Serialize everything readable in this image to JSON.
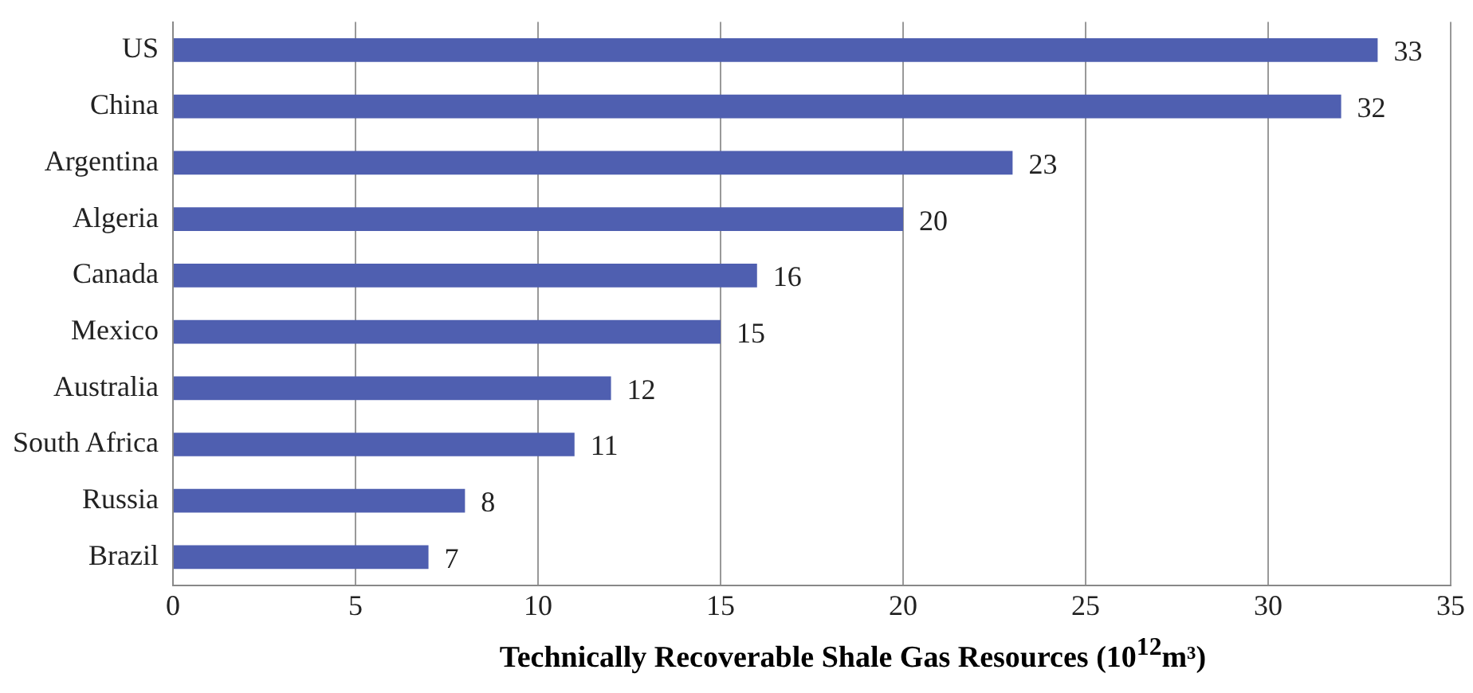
{
  "chart_data": {
    "type": "bar",
    "orientation": "horizontal",
    "xlabel": "Technically Recoverable Shale Gas Resources (10$^{12}$m³)",
    "categories": [
      "US",
      "China",
      "Argentina",
      "Algeria",
      "Canada",
      "Mexico",
      "Australia",
      "South Africa",
      "Russia",
      "Brazil"
    ],
    "values": [
      33,
      32,
      23,
      20,
      16,
      15,
      12,
      11,
      8,
      7
    ],
    "color": "#4f5fb0",
    "xlim": [
      0,
      35
    ],
    "xticks": [
      0,
      5,
      10,
      15,
      20,
      25,
      30,
      35
    ],
    "grid": "x",
    "data_labels": true,
    "legend": false
  }
}
